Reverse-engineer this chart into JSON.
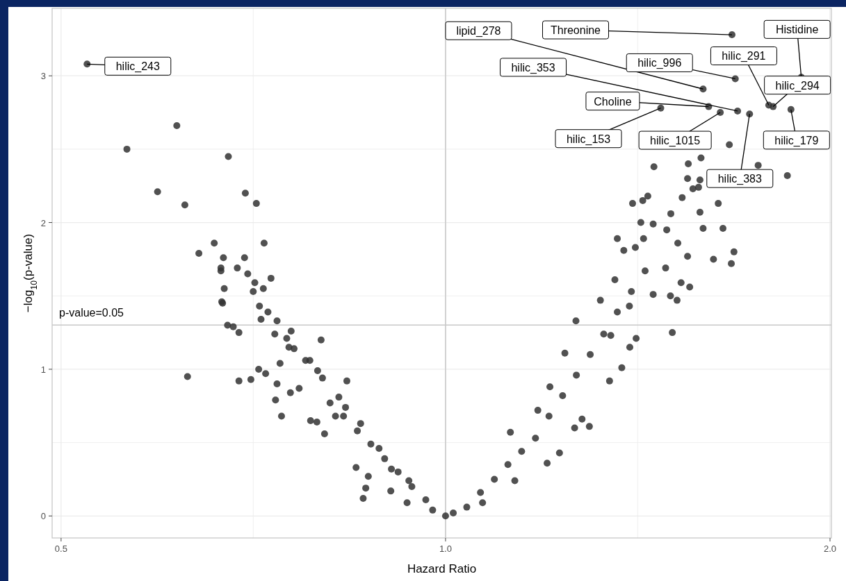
{
  "chart_data": {
    "type": "scatter",
    "xlabel": "Hazard Ratio",
    "ylabel": "−log$_{10}$(p-value)",
    "log": "x",
    "xlim": [
      0.492,
      2.005
    ],
    "ylim": [
      -0.15,
      3.46
    ],
    "xticks": [
      0.5,
      {
        "value": 0.707,
        "label": null
      },
      {
        "value": 1,
        "label": "1.0"
      },
      {
        "value": 1.414,
        "label": null
      },
      {
        "value": 2,
        "label": "2.0"
      }
    ],
    "yticks": [
      0,
      {
        "value": 0.5,
        "label": null
      },
      1,
      {
        "value": 1.5,
        "label": null
      },
      2,
      {
        "value": 2.5,
        "label": null
      },
      3
    ],
    "grid": true,
    "marker": "circle",
    "ref_lines": [
      {
        "axis": "y",
        "value": 1.301,
        "label": null,
        "color": "#c8c8c8"
      },
      {
        "axis": "x",
        "value": 1,
        "label": null,
        "color": "#c8c8c8"
      }
    ],
    "annotations": [
      {
        "text": "hilic_243",
        "x": 0.524,
        "y": 3.08
      },
      {
        "text": "lipid_278",
        "x": 1.591,
        "y": 2.91
      },
      {
        "text": "Threonine",
        "x": 1.676,
        "y": 3.28
      },
      {
        "text": "Histidine",
        "x": 1.899,
        "y": 2.99
      },
      {
        "text": "hilic_996",
        "x": 1.686,
        "y": 2.98
      },
      {
        "text": "hilic_291",
        "x": 1.791,
        "y": 2.8
      },
      {
        "text": "hilic_353",
        "x": 1.693,
        "y": 2.76
      },
      {
        "text": "hilic_294",
        "x": 1.805,
        "y": 2.79
      },
      {
        "text": "Choline",
        "x": 1.607,
        "y": 2.79
      },
      {
        "text": "hilic_153",
        "x": 1.474,
        "y": 2.78
      },
      {
        "text": "hilic_1015",
        "x": 1.641,
        "y": 2.75
      },
      {
        "text": "hilic_179",
        "x": 1.864,
        "y": 2.77
      },
      {
        "text": "hilic_383",
        "x": 1.73,
        "y": 2.74
      },
      "p-value=0.05"
    ],
    "series": [
      {
        "color": "#333333",
        "x": [
          0.524,
          1.591,
          1.676,
          1.899,
          1.686,
          1.791,
          1.693,
          1.805,
          1.607,
          1.474,
          1.641,
          1.864,
          1.73,
          0.563,
          0.616,
          0.595,
          0.625,
          0.676,
          0.697,
          0.711,
          0.659,
          0.641,
          0.721,
          0.628,
          0.73,
          0.667,
          0.687,
          0.7,
          0.669,
          0.682,
          0.689,
          0.704,
          0.717,
          0.735,
          0.754,
          0.777,
          0.801,
          0.744,
          0.736,
          0.768,
          0.812,
          0.832,
          0.853,
          0.874,
          0.896,
          0.918,
          0.941,
          0.965,
          1.0,
          0.866,
          0.87,
          0.82,
          0.837,
          0.67,
          0.696,
          0.667,
          0.72,
          0.709,
          0.671,
          0.668,
          0.675,
          0.689,
          0.714,
          0.723,
          0.707,
          0.715,
          0.726,
          0.738,
          0.757,
          0.751,
          0.761,
          0.799,
          0.783,
          0.794,
          0.742,
          0.738,
          0.756,
          0.825,
          0.835,
          0.784,
          0.793,
          0.804,
          0.858,
          0.851,
          0.862,
          0.906,
          0.887,
          0.933,
          0.936,
          0.907,
          0.977,
          1.014,
          1.039,
          1.065,
          1.092,
          1.119,
          1.147,
          1.176,
          1.205,
          1.235,
          1.266,
          1.298,
          1.33,
          1.363,
          1.398,
          1.433,
          1.201,
          1.228,
          1.124,
          1.262,
          1.296,
          1.374,
          1.505,
          1.41,
          1.394,
          1.344,
          1.265,
          1.347,
          1.207,
          1.181,
          1.069,
          1.133,
          1.279,
          1.24,
          1.427,
          1.401,
          1.456,
          1.549,
          1.582,
          1.562,
          1.635,
          1.649,
          1.591,
          1.621,
          1.682,
          1.674,
          1.668,
          1.757,
          1.852,
          1.585,
          1.547,
          1.578,
          1.44,
          1.501,
          1.582,
          1.532,
          1.52,
          1.49,
          1.454,
          1.422,
          1.363,
          1.429,
          1.379,
          1.408,
          1.487,
          1.547,
          1.553,
          1.529,
          1.357,
          1.322,
          1.393,
          1.454,
          1.5,
          1.518
        ],
        "values": [
          3.08,
          2.91,
          3.28,
          2.99,
          2.98,
          2.8,
          2.76,
          2.79,
          2.79,
          2.78,
          2.75,
          2.77,
          2.74,
          2.5,
          2.66,
          2.21,
          2.12,
          2.45,
          2.2,
          2.13,
          1.86,
          1.79,
          1.86,
          0.95,
          1.62,
          1.69,
          1.69,
          1.65,
          1.45,
          1.29,
          0.92,
          0.93,
          1.34,
          1.24,
          1.15,
          1.06,
          0.94,
          0.68,
          0.79,
          0.87,
          0.77,
          0.68,
          0.58,
          0.49,
          0.39,
          0.3,
          0.2,
          0.11,
          0.0,
          0.19,
          0.27,
          0.68,
          0.92,
          1.76,
          1.76,
          1.67,
          1.55,
          1.59,
          1.55,
          1.46,
          1.3,
          1.25,
          1.0,
          0.97,
          1.53,
          1.43,
          1.39,
          1.33,
          1.26,
          1.21,
          1.14,
          1.2,
          1.06,
          0.99,
          1.04,
          0.9,
          0.84,
          0.81,
          0.74,
          0.65,
          0.64,
          0.56,
          0.63,
          0.33,
          0.12,
          0.17,
          0.46,
          0.09,
          0.24,
          0.32,
          0.04,
          0.02,
          0.06,
          0.16,
          0.25,
          0.35,
          0.44,
          0.53,
          0.68,
          0.82,
          0.96,
          1.1,
          1.24,
          1.39,
          1.53,
          1.67,
          0.36,
          0.43,
          0.57,
          0.6,
          0.61,
          1.01,
          1.25,
          1.21,
          1.15,
          0.92,
          1.33,
          1.23,
          0.88,
          0.72,
          0.09,
          0.24,
          0.66,
          1.11,
          2.15,
          2.13,
          2.38,
          2.4,
          2.29,
          2.23,
          2.13,
          1.96,
          1.96,
          1.75,
          1.8,
          1.72,
          2.53,
          2.39,
          2.32,
          2.44,
          2.3,
          2.24,
          2.18,
          2.06,
          2.07,
          2.17,
          1.86,
          1.95,
          1.99,
          2.0,
          1.89,
          1.89,
          1.81,
          1.83,
          1.69,
          1.77,
          1.56,
          1.59,
          1.61,
          1.47,
          1.43,
          1.51,
          1.5,
          1.47
        ]
      }
    ]
  }
}
